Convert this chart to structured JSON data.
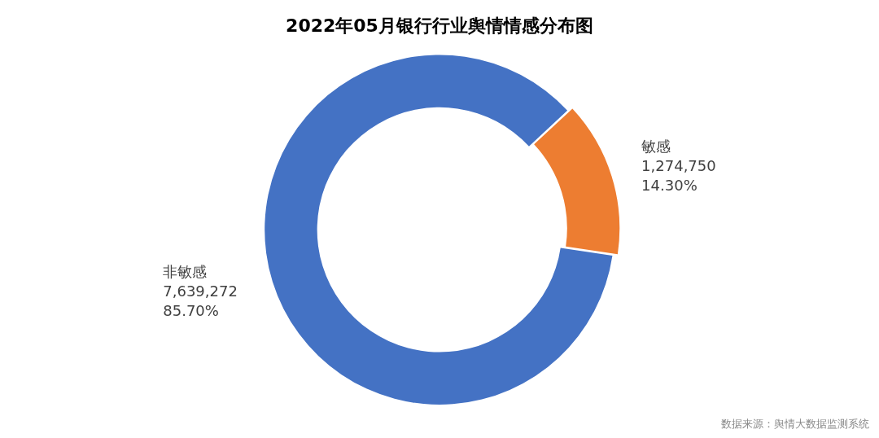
{
  "chart_data": {
    "type": "donut",
    "title": "2022年05月银行行业舆情情感分布图",
    "categories": [
      "敏感",
      "非敏感"
    ],
    "values": [
      1274750,
      7639272
    ],
    "colors": [
      "#ed7d31",
      "#4472c4"
    ],
    "value_labels": [
      "1,274,750\n14.30%",
      "7,639,272\n85.70%"
    ],
    "legend": false,
    "annotations": [
      "数据来源：舆情大数据监测系统"
    ]
  }
}
